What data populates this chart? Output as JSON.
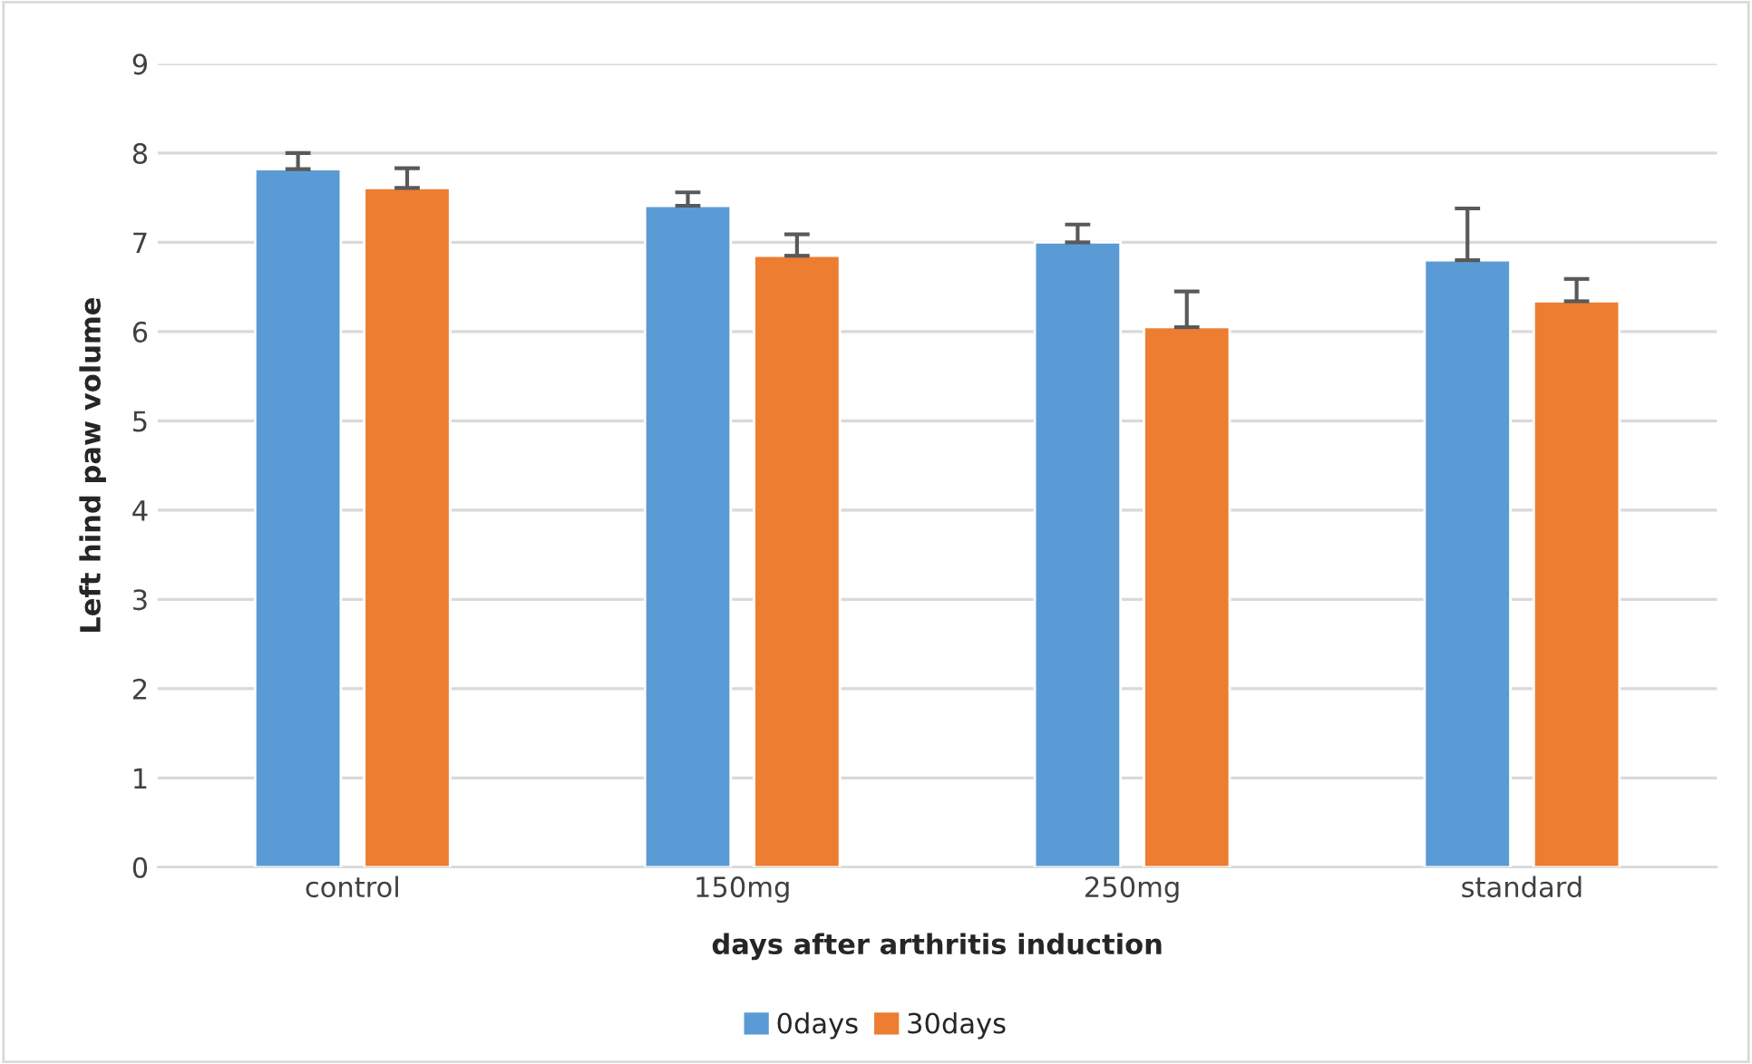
{
  "chart_data": {
    "type": "bar",
    "xlabel": "days after arthritis induction",
    "ylabel": "Left hind paw volume",
    "categories": [
      "control",
      "150mg",
      "250mg",
      "standard"
    ],
    "series": [
      {
        "name": "0days",
        "color": "#5b9bd5",
        "values": [
          7.82,
          7.41,
          7.0,
          6.8
        ],
        "errors": [
          [
            7.82,
            8.0
          ],
          [
            7.41,
            7.56
          ],
          [
            7.0,
            7.2
          ],
          [
            6.8,
            7.38
          ]
        ]
      },
      {
        "name": "30days",
        "color": "#ed7d31",
        "values": [
          7.61,
          6.85,
          6.05,
          6.34
        ],
        "errors": [
          [
            7.61,
            7.83
          ],
          [
            6.85,
            7.09
          ],
          [
            6.05,
            6.45
          ],
          [
            6.34,
            6.59
          ]
        ]
      }
    ],
    "ylim": [
      0,
      9
    ],
    "yticks": [
      0,
      1,
      2,
      3,
      4,
      5,
      6,
      7,
      8,
      9
    ],
    "grid": "y",
    "legend": "bottom"
  }
}
